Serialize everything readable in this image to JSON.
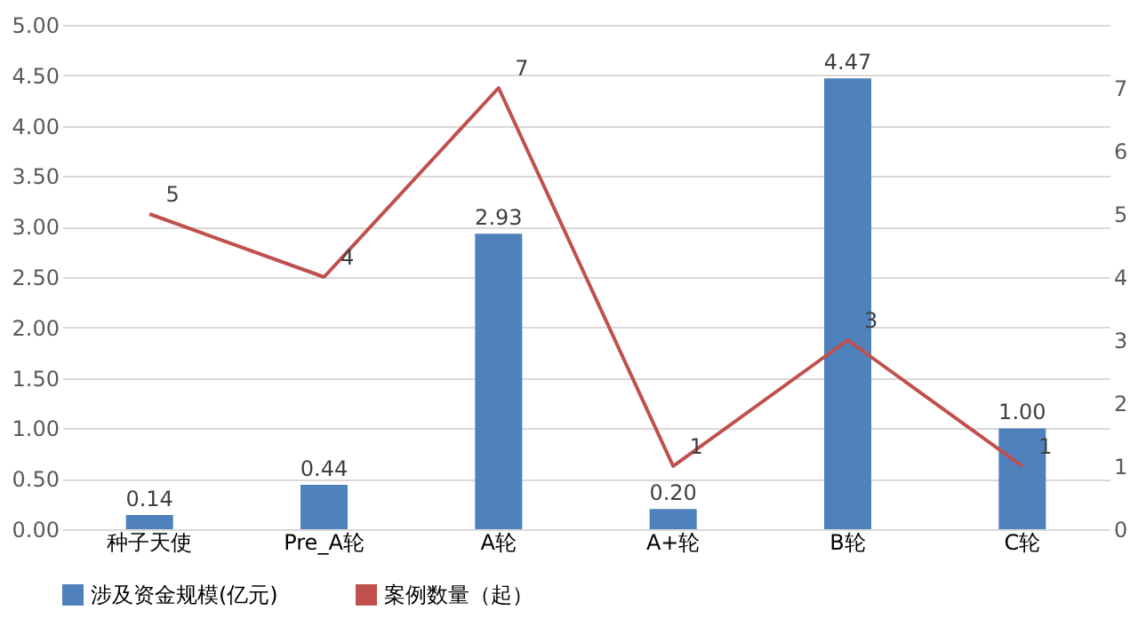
{
  "chart_data": {
    "type": "bar",
    "categories": [
      "种子天使",
      "Pre_A轮",
      "A轮",
      "A+轮",
      "B轮",
      "C轮"
    ],
    "series": [
      {
        "name": "涉及资金规模(亿元)",
        "color": "#4f81bd",
        "values": [
          0.14,
          0.44,
          2.93,
          0.2,
          4.47,
          1.0
        ],
        "value_labels": [
          "0.14",
          "0.44",
          "2.93",
          "0.20",
          "4.47",
          "1.00"
        ]
      },
      {
        "name": "案例数量（起）",
        "type": "line",
        "axis": "y2",
        "color": "#c0504d",
        "values": [
          5,
          4,
          7,
          1,
          3,
          1
        ],
        "value_labels": [
          "5",
          "4",
          "7",
          "1",
          "3",
          "1"
        ]
      }
    ],
    "ylim": [
      0,
      5
    ],
    "yticks": [
      {
        "value": 0,
        "label": "0.00"
      },
      {
        "value": 0.5,
        "label": "0.50"
      },
      {
        "value": 1,
        "label": "1.00"
      },
      {
        "value": 1.5,
        "label": "1.50"
      },
      {
        "value": 2,
        "label": "2.00"
      },
      {
        "value": 2.5,
        "label": "2.50"
      },
      {
        "value": 3,
        "label": "3.00"
      },
      {
        "value": 3.5,
        "label": "3.50"
      },
      {
        "value": 4,
        "label": "4.00"
      },
      {
        "value": 4.5,
        "label": "4.50"
      },
      {
        "value": 5,
        "label": "5.00"
      }
    ],
    "y2lim": [
      0,
      8
    ],
    "y2ticks": [
      0,
      1,
      2,
      3,
      4,
      5,
      6,
      7
    ],
    "grid": "y",
    "legend": "bottom",
    "marker": "none",
    "line_style": "solid"
  }
}
